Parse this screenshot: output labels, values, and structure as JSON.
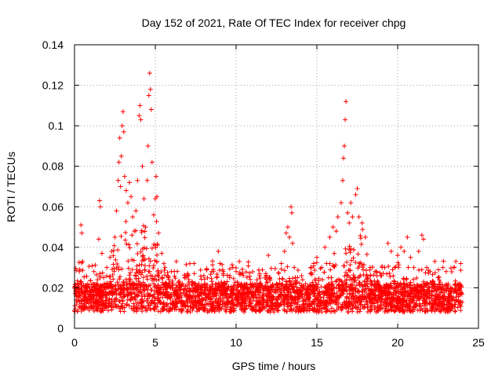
{
  "chart_data": {
    "type": "scatter",
    "title": "Day 152 of 2021, Rate Of TEC Index for receiver chpg",
    "xlabel": "GPS time / hours",
    "ylabel": "ROTI / TECUs",
    "xlim": [
      0,
      25
    ],
    "ylim": [
      0,
      0.14
    ],
    "xticks": [
      0,
      5,
      10,
      15,
      20,
      25
    ],
    "xtick_labels": [
      "0",
      "5",
      "10",
      "15",
      "20",
      "25"
    ],
    "yticks": [
      0,
      0.02,
      0.04,
      0.06,
      0.08,
      0.1,
      0.12,
      0.14
    ],
    "ytick_labels": [
      "0",
      "0.02",
      "0.04",
      "0.06",
      "0.08",
      "0.1",
      "0.12",
      "0.14"
    ],
    "grid": true,
    "marker": "+",
    "marker_color": "#ff0000",
    "series": [
      {
        "name": "ROTI",
        "points": [
          [
            0.1,
            0.014
          ],
          [
            0.2,
            0.022
          ],
          [
            0.3,
            0.028
          ],
          [
            0.35,
            0.016
          ],
          [
            0.4,
            0.051
          ],
          [
            0.45,
            0.047
          ],
          [
            0.5,
            0.033
          ],
          [
            0.6,
            0.012
          ],
          [
            0.8,
            0.02
          ],
          [
            1.0,
            0.018
          ],
          [
            1.2,
            0.028
          ],
          [
            1.4,
            0.022
          ],
          [
            1.5,
            0.044
          ],
          [
            1.55,
            0.063
          ],
          [
            1.6,
            0.06
          ],
          [
            1.7,
            0.037
          ],
          [
            1.8,
            0.025
          ],
          [
            2.0,
            0.03
          ],
          [
            2.2,
            0.035
          ],
          [
            2.3,
            0.038
          ],
          [
            2.5,
            0.045
          ],
          [
            2.6,
            0.058
          ],
          [
            2.7,
            0.073
          ],
          [
            2.75,
            0.082
          ],
          [
            2.8,
            0.094
          ],
          [
            2.85,
            0.07
          ],
          [
            2.9,
            0.085
          ],
          [
            2.95,
            0.1
          ],
          [
            3.0,
            0.107
          ],
          [
            3.05,
            0.097
          ],
          [
            3.1,
            0.075
          ],
          [
            3.2,
            0.068
          ],
          [
            3.3,
            0.062
          ],
          [
            3.4,
            0.072
          ],
          [
            3.5,
            0.065
          ],
          [
            3.6,
            0.055
          ],
          [
            3.7,
            0.048
          ],
          [
            3.8,
            0.058
          ],
          [
            3.9,
            0.073
          ],
          [
            4.0,
            0.105
          ],
          [
            4.05,
            0.11
          ],
          [
            4.1,
            0.103
          ],
          [
            4.2,
            0.08
          ],
          [
            4.3,
            0.064
          ],
          [
            4.4,
            0.05
          ],
          [
            4.5,
            0.073
          ],
          [
            4.55,
            0.09
          ],
          [
            4.6,
            0.115
          ],
          [
            4.65,
            0.126
          ],
          [
            4.7,
            0.118
          ],
          [
            4.75,
            0.108
          ],
          [
            4.8,
            0.082
          ],
          [
            4.9,
            0.056
          ],
          [
            5.0,
            0.064
          ],
          [
            5.05,
            0.075
          ],
          [
            5.1,
            0.065
          ],
          [
            5.2,
            0.047
          ],
          [
            5.4,
            0.037
          ],
          [
            5.6,
            0.03
          ],
          [
            5.8,
            0.025
          ],
          [
            6.0,
            0.028
          ],
          [
            6.3,
            0.033
          ],
          [
            6.5,
            0.022
          ],
          [
            7.0,
            0.027
          ],
          [
            7.4,
            0.032
          ],
          [
            7.8,
            0.02
          ],
          [
            8.0,
            0.026
          ],
          [
            8.5,
            0.028
          ],
          [
            8.8,
            0.025
          ],
          [
            8.9,
            0.038
          ],
          [
            9.0,
            0.032
          ],
          [
            9.3,
            0.02
          ],
          [
            9.6,
            0.025
          ],
          [
            9.8,
            0.03
          ],
          [
            10.0,
            0.028
          ],
          [
            10.2,
            0.033
          ],
          [
            10.5,
            0.02
          ],
          [
            11.0,
            0.022
          ],
          [
            11.4,
            0.018
          ],
          [
            11.8,
            0.025
          ],
          [
            12.0,
            0.036
          ],
          [
            12.2,
            0.02
          ],
          [
            12.5,
            0.022
          ],
          [
            12.8,
            0.032
          ],
          [
            13.0,
            0.038
          ],
          [
            13.1,
            0.047
          ],
          [
            13.2,
            0.05
          ],
          [
            13.3,
            0.045
          ],
          [
            13.4,
            0.06
          ],
          [
            13.45,
            0.057
          ],
          [
            13.5,
            0.042
          ],
          [
            13.6,
            0.03
          ],
          [
            13.8,
            0.025
          ],
          [
            14.0,
            0.02
          ],
          [
            14.3,
            0.022
          ],
          [
            14.6,
            0.027
          ],
          [
            14.8,
            0.032
          ],
          [
            15.0,
            0.035
          ],
          [
            15.3,
            0.03
          ],
          [
            15.5,
            0.04
          ],
          [
            15.8,
            0.045
          ],
          [
            16.0,
            0.05
          ],
          [
            16.2,
            0.048
          ],
          [
            16.3,
            0.055
          ],
          [
            16.5,
            0.062
          ],
          [
            16.6,
            0.073
          ],
          [
            16.65,
            0.084
          ],
          [
            16.7,
            0.09
          ],
          [
            16.75,
            0.103
          ],
          [
            16.8,
            0.112
          ],
          [
            16.9,
            0.057
          ],
          [
            17.0,
            0.052
          ],
          [
            17.1,
            0.062
          ],
          [
            17.2,
            0.055
          ],
          [
            17.4,
            0.066
          ],
          [
            17.5,
            0.069
          ],
          [
            17.6,
            0.055
          ],
          [
            17.8,
            0.052
          ],
          [
            18.0,
            0.045
          ],
          [
            18.3,
            0.03
          ],
          [
            18.6,
            0.028
          ],
          [
            18.8,
            0.022
          ],
          [
            19.0,
            0.026
          ],
          [
            19.2,
            0.03
          ],
          [
            19.4,
            0.042
          ],
          [
            19.6,
            0.038
          ],
          [
            19.8,
            0.03
          ],
          [
            20.0,
            0.036
          ],
          [
            20.2,
            0.04
          ],
          [
            20.4,
            0.038
          ],
          [
            20.6,
            0.045
          ],
          [
            20.8,
            0.035
          ],
          [
            21.0,
            0.03
          ],
          [
            21.3,
            0.038
          ],
          [
            21.5,
            0.046
          ],
          [
            21.6,
            0.044
          ],
          [
            21.8,
            0.03
          ],
          [
            22.0,
            0.028
          ],
          [
            22.3,
            0.033
          ],
          [
            22.5,
            0.025
          ],
          [
            22.8,
            0.03
          ],
          [
            23.0,
            0.028
          ],
          [
            23.3,
            0.02
          ],
          [
            23.6,
            0.033
          ],
          [
            23.9,
            0.032
          ]
        ],
        "band_note": "dense cloud of points between approximately 0.005 and 0.025 across 0 to 24 hours"
      }
    ]
  }
}
